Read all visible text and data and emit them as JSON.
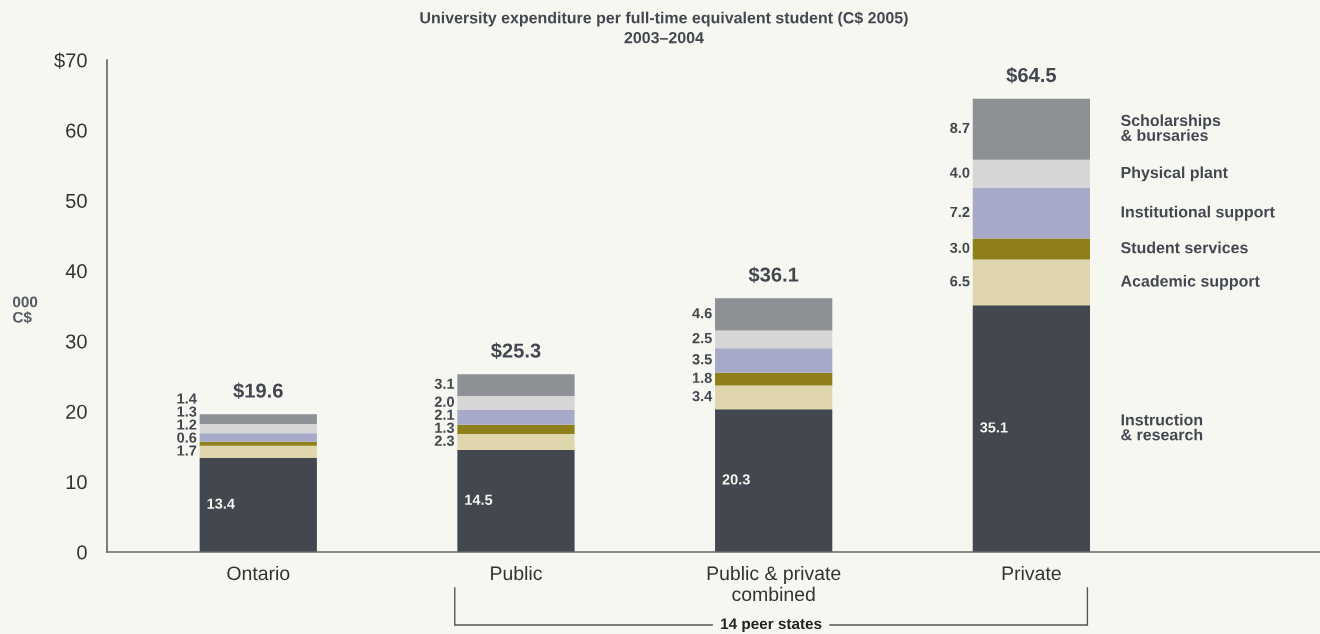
{
  "chart_data": {
    "type": "bar",
    "stacked": true,
    "title": "University expenditure per full-time equivalent student (C$ 2005)",
    "subtitle": "2003–2004",
    "ylabel": "000\nC$",
    "categories": [
      "Ontario",
      "Public",
      "Public & private\ncombined",
      "Private"
    ],
    "series": [
      {
        "name": "Instruction\n& research",
        "color": "#43474f",
        "values": [
          13.4,
          14.5,
          20.3,
          35.1
        ],
        "value_labels": [
          "13.4",
          "14.5",
          "20.3",
          "35.1"
        ]
      },
      {
        "name": "Academic support",
        "color": "#dfd6ad",
        "values": [
          1.7,
          2.3,
          3.4,
          6.5
        ],
        "value_labels": [
          "1.7",
          "2.3",
          "3.4",
          "6.5"
        ]
      },
      {
        "name": "Student services",
        "color": "#8f7f1b",
        "values": [
          0.6,
          1.3,
          1.8,
          3.0
        ],
        "value_labels": [
          "0.6",
          "1.3",
          "1.8",
          "3.0"
        ]
      },
      {
        "name": "Institutional support",
        "color": "#a6aac8",
        "values": [
          1.2,
          2.1,
          3.5,
          7.2
        ],
        "value_labels": [
          "1.2",
          "2.1",
          "3.5",
          "7.2"
        ]
      },
      {
        "name": "Physical plant",
        "color": "#d6d6d6",
        "values": [
          1.3,
          2.0,
          2.5,
          4.0
        ],
        "value_labels": [
          "1.3",
          "2.0",
          "2.5",
          "4.0"
        ]
      },
      {
        "name": "Scholarships\n& bursaries",
        "color": "#8d9095",
        "values": [
          1.4,
          3.1,
          4.6,
          8.7
        ],
        "value_labels": [
          "1.4",
          "3.1",
          "4.6",
          "8.7"
        ]
      }
    ],
    "ylim": [
      0,
      70
    ],
    "yticks": [
      0,
      10,
      20,
      30,
      40,
      50,
      60,
      {
        "value": 70,
        "label": "$70"
      }
    ],
    "totals": [
      "$19.6",
      "$25.3",
      "$36.1",
      "$64.5"
    ],
    "annotations": [
      "14 peer states"
    ]
  }
}
